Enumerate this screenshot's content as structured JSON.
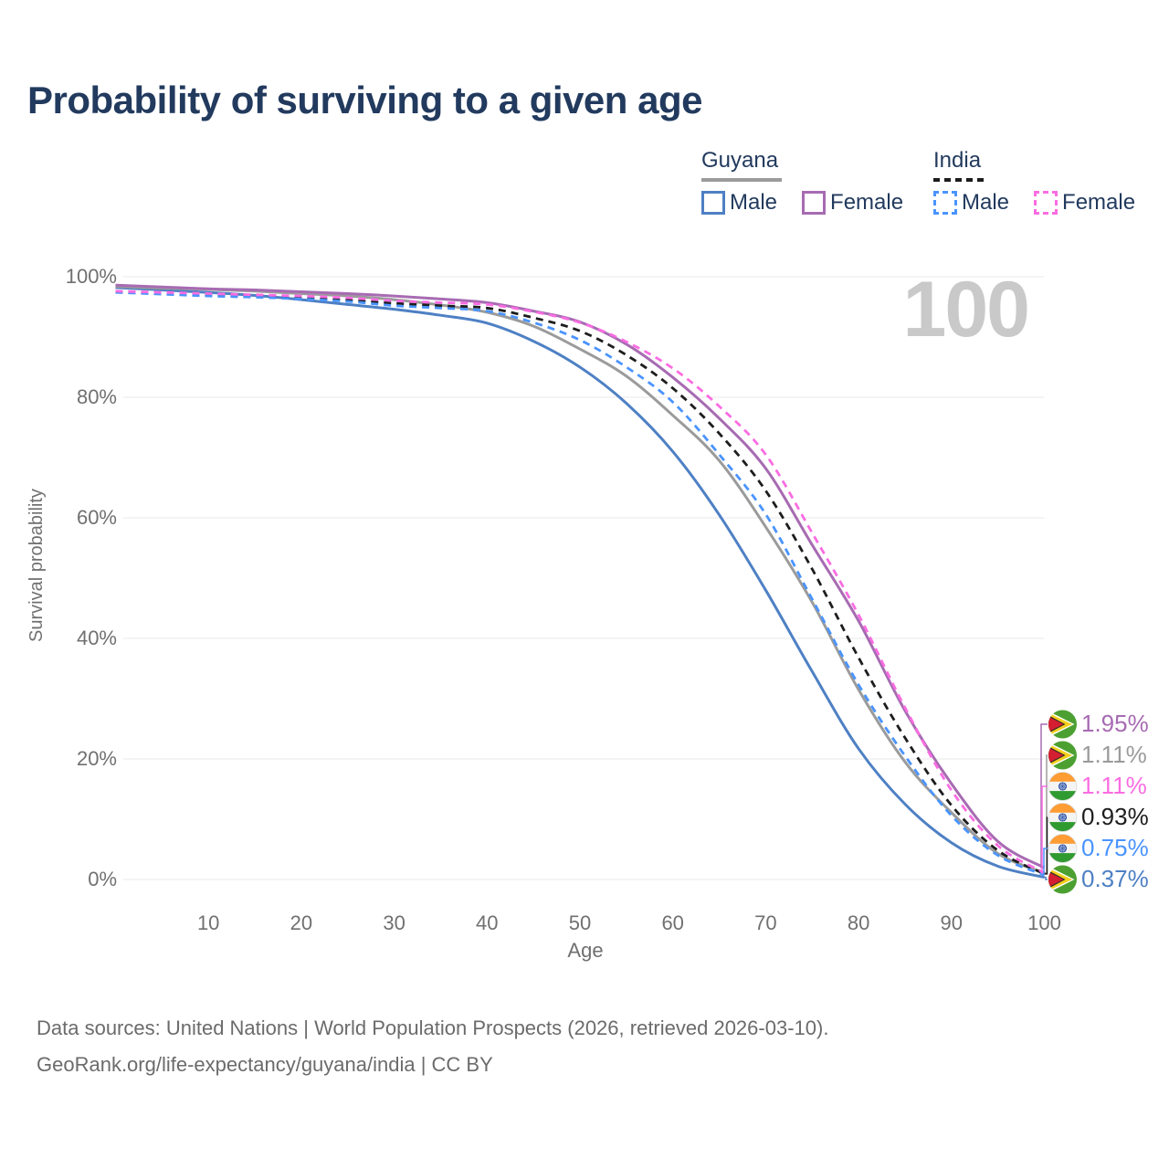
{
  "title": "Probability of surviving to a given age",
  "watermark": "100",
  "legend": {
    "guyana": {
      "label": "Guyana",
      "male": "Male",
      "female": "Female"
    },
    "india": {
      "label": "India",
      "male": "Male",
      "female": "Female"
    }
  },
  "axes": {
    "y_title": "Survival probability",
    "x_title": "Age"
  },
  "footer": {
    "line1": "Data sources: United Nations | World Population Prospects (2026, retrieved 2026-03-10).",
    "line2": "GeoRank.org/life-expectancy/guyana/india | CC BY"
  },
  "colors": {
    "title_text": "#223a5e",
    "axis_text": "#707070",
    "grid": "#e9e9e9",
    "watermark": "#c9c9c9",
    "footer_text": "#6b6b6b",
    "guyana_male": "#4e80c4",
    "guyana_female": "#a76bb2",
    "guyana_total": "#9b9b9b",
    "india_male": "#4a94ff",
    "india_female": "#fa6ce2",
    "india_total": "#1d1d1d"
  },
  "chart_data": {
    "type": "line",
    "title": "Probability of surviving to a given age",
    "xlabel": "Age",
    "ylabel": "Survival probability",
    "xlim": [
      0,
      100
    ],
    "ylim": [
      0,
      100
    ],
    "grid": "horizontal",
    "legend_position": "top-right",
    "x_ticks": [
      {
        "label": "10",
        "value": 10
      },
      {
        "label": "20",
        "value": 20
      },
      {
        "label": "30",
        "value": 30
      },
      {
        "label": "40",
        "value": 40
      },
      {
        "label": "50",
        "value": 50
      },
      {
        "label": "60",
        "value": 60
      },
      {
        "label": "70",
        "value": 70
      },
      {
        "label": "80",
        "value": 80
      },
      {
        "label": "90",
        "value": 90
      },
      {
        "label": "100",
        "value": 100
      }
    ],
    "y_ticks": [
      {
        "label": "0%",
        "value": 0
      },
      {
        "label": "20%",
        "value": 20
      },
      {
        "label": "40%",
        "value": 40
      },
      {
        "label": "60%",
        "value": 60
      },
      {
        "label": "80%",
        "value": 80
      },
      {
        "label": "100%",
        "value": 100
      }
    ],
    "x": [
      0,
      5,
      10,
      15,
      20,
      25,
      30,
      35,
      40,
      45,
      50,
      55,
      60,
      65,
      70,
      75,
      80,
      85,
      90,
      95,
      100
    ],
    "series": [
      {
        "name": "Guyana Male",
        "country": "guyana",
        "sex": "male",
        "style": "solid",
        "color": "#4e80c4",
        "end_label": "0.37%",
        "values": [
          98.2,
          97.8,
          97.4,
          96.9,
          96.2,
          95.4,
          94.6,
          93.6,
          92.3,
          89.3,
          85.0,
          79.0,
          71.0,
          60.5,
          48.0,
          34.5,
          21.7,
          12.5,
          6.1,
          2.2,
          0.37
        ]
      },
      {
        "name": "Guyana Both sexes",
        "country": "guyana",
        "sex": "both",
        "style": "solid",
        "color": "#9b9b9b",
        "end_label": "1.11%",
        "values": [
          98.4,
          98.1,
          97.9,
          97.6,
          97.2,
          96.8,
          96.2,
          95.3,
          94.1,
          91.8,
          88.0,
          83.5,
          77.0,
          69.5,
          58.5,
          46.0,
          31.5,
          19.5,
          11.1,
          4.3,
          1.11
        ]
      },
      {
        "name": "Guyana Female",
        "country": "guyana",
        "sex": "female",
        "style": "solid",
        "color": "#a76bb2",
        "end_label": "1.95%",
        "values": [
          98.6,
          98.3,
          98.0,
          97.8,
          97.5,
          97.2,
          96.8,
          96.3,
          95.7,
          94.3,
          92.5,
          88.8,
          83.3,
          76.5,
          68.2,
          55.5,
          42.9,
          28.0,
          15.9,
          6.3,
          1.95
        ]
      },
      {
        "name": "India Both sexes",
        "country": "india",
        "sex": "both",
        "style": "dashed",
        "color": "#1d1d1d",
        "end_label": "0.93%",
        "values": [
          97.5,
          97.2,
          97.0,
          96.8,
          96.5,
          96.1,
          95.6,
          95.2,
          94.8,
          93.2,
          91.0,
          87.0,
          81.5,
          74.0,
          64.5,
          51.5,
          36.8,
          23.5,
          12.3,
          4.8,
          0.93
        ]
      },
      {
        "name": "India Male",
        "country": "india",
        "sex": "male",
        "style": "dashed",
        "color": "#4a94ff",
        "end_label": "0.75%",
        "values": [
          97.4,
          97.1,
          96.8,
          96.6,
          96.3,
          95.9,
          95.2,
          94.8,
          94.3,
          92.4,
          89.5,
          85.0,
          79.2,
          70.5,
          60.6,
          46.5,
          32.3,
          20.5,
          10.6,
          4.0,
          0.75
        ]
      },
      {
        "name": "India Female",
        "country": "india",
        "sex": "female",
        "style": "dashed",
        "color": "#fa6ce2",
        "end_label": "1.11%",
        "values": [
          97.6,
          97.4,
          97.2,
          97.0,
          96.8,
          96.5,
          96.0,
          95.7,
          95.4,
          94.2,
          92.4,
          89.2,
          84.8,
          78.5,
          70.5,
          57.5,
          43.9,
          28.5,
          14.8,
          5.6,
          1.11
        ]
      }
    ],
    "end_labels": [
      {
        "flag": "guyana",
        "series": "Guyana Female",
        "text": "1.95%",
        "value": 1.95,
        "color": "#a76bb2"
      },
      {
        "flag": "guyana",
        "series": "Guyana Both sexes",
        "text": "1.11%",
        "value": 1.11,
        "color": "#9b9b9b"
      },
      {
        "flag": "india",
        "series": "India Female",
        "text": "1.11%",
        "value": 1.11,
        "color": "#fa6ce2"
      },
      {
        "flag": "india",
        "series": "India Both sexes",
        "text": "0.93%",
        "value": 0.93,
        "color": "#1d1d1d"
      },
      {
        "flag": "india",
        "series": "India Male",
        "text": "0.75%",
        "value": 0.75,
        "color": "#4a94ff"
      },
      {
        "flag": "guyana",
        "series": "Guyana Male",
        "text": "0.37%",
        "value": 0.37,
        "color": "#4e80c4"
      }
    ]
  }
}
